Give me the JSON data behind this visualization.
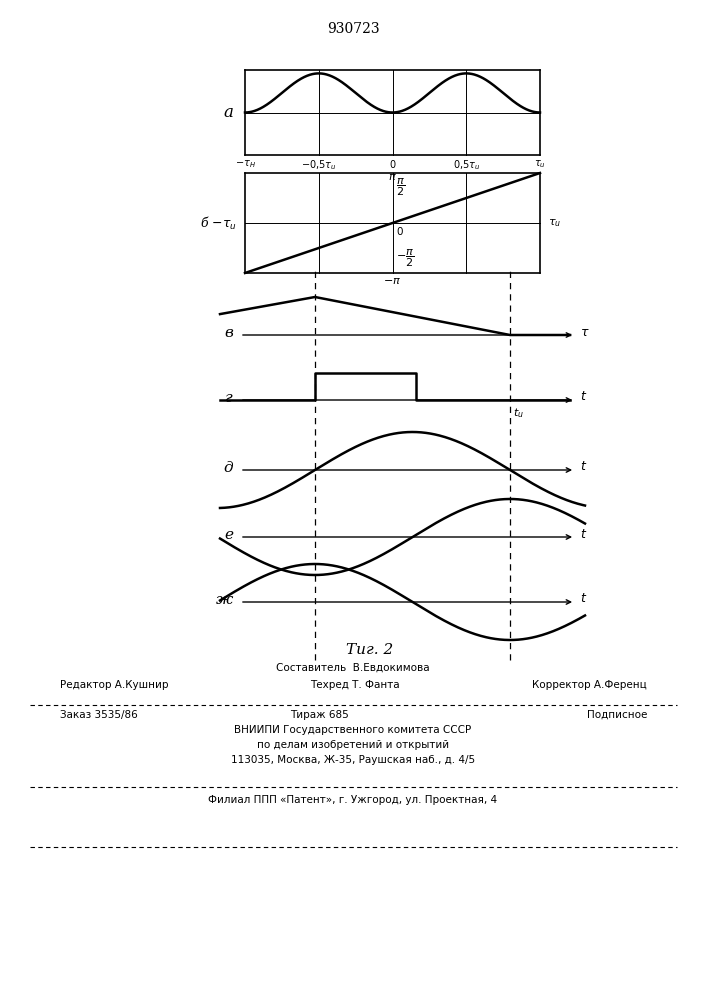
{
  "title": "930723",
  "fig_caption": "Τиг. 2",
  "bg_color": "#ffffff",
  "line_color": "#000000",
  "label_a": "a",
  "label_b_greek": "б",
  "label_v": "в",
  "label_g": "г",
  "label_d": "д",
  "label_e": "е",
  "label_zh": "ж",
  "footer_line1": "Составитель  В.Евдокимова",
  "footer_line2_left": "Редактор А.Кушнир",
  "footer_line2_mid": "Техред Т. Фанта",
  "footer_line2_right": "Корректор А.Ференц",
  "footer_line3_left": "Заказ 3535/86",
  "footer_line3_mid": "Тираж 685",
  "footer_line3_right": "Подписное",
  "footer_line4": "ВНИИПИ Государственного комитета СССР",
  "footer_line5": "по делам изобретений и открытий",
  "footer_line6": "113035, Москва, Ж-35, Раушская наб., д. 4/5",
  "footer_line7": "Филиал ППП «Патент», г. Ужгород, ул. Проектная, 4"
}
